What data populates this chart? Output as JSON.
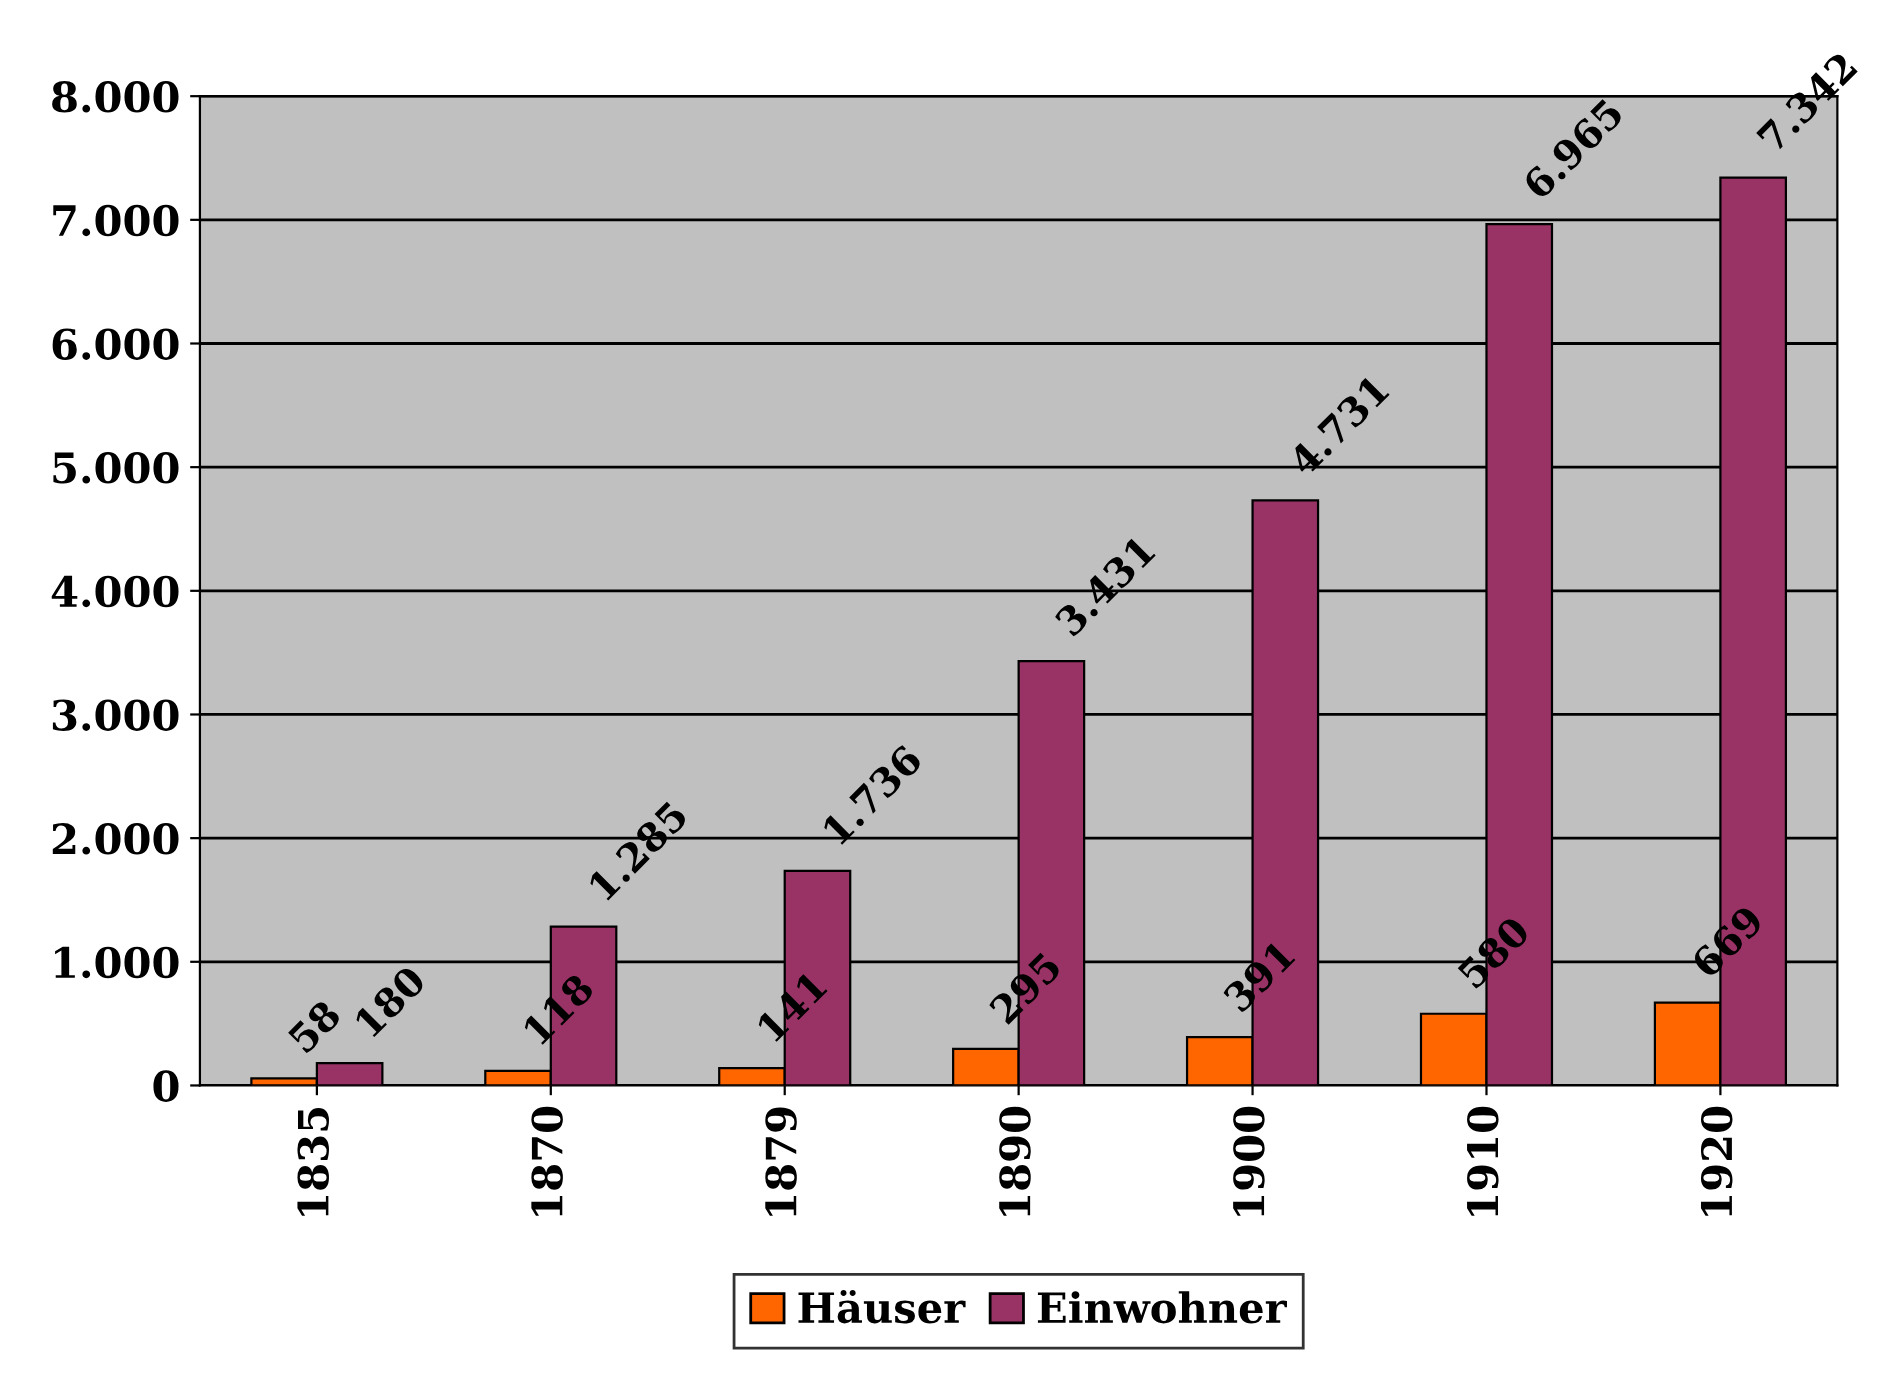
{
  "chart_data": {
    "type": "bar",
    "categories": [
      "1835",
      "1870",
      "1879",
      "1890",
      "1900",
      "1910",
      "1920"
    ],
    "series": [
      {
        "name": "Häuser",
        "color": "#ff6600",
        "values": [
          58,
          118,
          141,
          295,
          391,
          580,
          669
        ],
        "value_labels": [
          "58",
          "118",
          "141",
          "295",
          "391",
          "580",
          "669"
        ]
      },
      {
        "name": "Einwohner",
        "color": "#993366",
        "values": [
          180,
          1285,
          1736,
          3431,
          4731,
          6965,
          7342
        ],
        "value_labels": [
          "180",
          "1.285",
          "1.736",
          "3.431",
          "4.731",
          "6.965",
          "7.342"
        ]
      }
    ],
    "ylim": [
      0,
      8000
    ],
    "yticks": [
      {
        "value": 0,
        "label": "0"
      },
      {
        "value": 1000,
        "label": "1.000"
      },
      {
        "value": 2000,
        "label": "2.000"
      },
      {
        "value": 3000,
        "label": "3.000"
      },
      {
        "value": 4000,
        "label": "4.000"
      },
      {
        "value": 5000,
        "label": "5.000"
      },
      {
        "value": 6000,
        "label": "6.000"
      },
      {
        "value": 7000,
        "label": "7.000"
      },
      {
        "value": 8000,
        "label": "8.000"
      }
    ],
    "grid": "y",
    "legend": "bottom"
  }
}
